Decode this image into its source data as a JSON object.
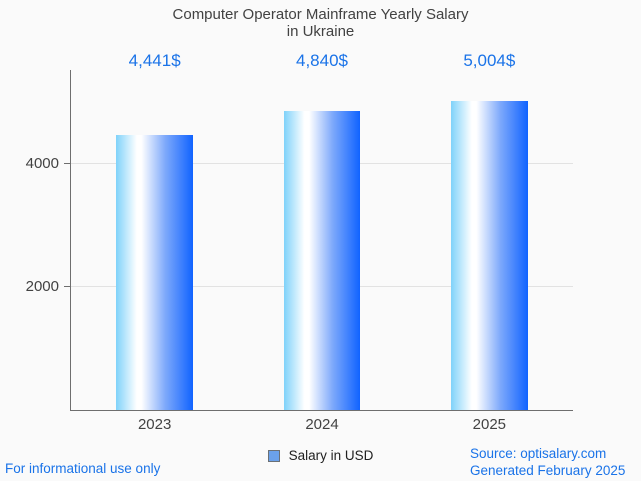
{
  "title": {
    "line1": "Computer Operator Mainframe Yearly Salary",
    "line2": "in Ukraine"
  },
  "legend": {
    "label": "Salary in USD"
  },
  "footer": {
    "left_note": "For informational use only",
    "source": "Source: optisalary.com",
    "generated": "Generated February 2025"
  },
  "colors": {
    "background": "#fafafa",
    "accent_blue": "#1a73e8",
    "text_gray": "#424242",
    "axis_gray": "#6e6e6e",
    "grid_gray": "#e2e2e2",
    "legend_marker": "#6ba1ea",
    "bar_gradient": [
      "#7fd2fa",
      "#ffffff",
      "#7ea9fb",
      "#1063ff"
    ]
  },
  "chart_data": {
    "type": "bar",
    "title": "Computer Operator Mainframe Yearly Salary in Ukraine",
    "xlabel": "",
    "ylabel": "",
    "categories": [
      "2023",
      "2024",
      "2025"
    ],
    "series": [
      {
        "name": "Salary in USD",
        "values": [
          4441,
          4840,
          5004
        ]
      }
    ],
    "value_labels": [
      "4,441$",
      "4,840$",
      "5,004$"
    ],
    "yticks": [
      {
        "value": 2000,
        "label": "2000"
      },
      {
        "value": 4000,
        "label": "4000"
      }
    ],
    "ylim": [
      0,
      5500
    ],
    "grid": true,
    "legend_position": "bottom"
  }
}
